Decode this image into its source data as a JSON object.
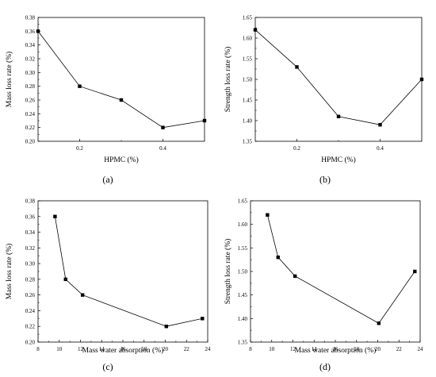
{
  "chart_data": [
    {
      "type": "line",
      "panel_label": "(a)",
      "xlabel": "HPMC (%)",
      "ylabel": "Mass loss rate (%)",
      "xlim": [
        0.1,
        0.5
      ],
      "ylim": [
        0.2,
        0.38
      ],
      "xticks": [
        0.2,
        0.4
      ],
      "xtick_labels": [
        "0.2",
        "0.4"
      ],
      "yticks": [
        0.2,
        0.22,
        0.24,
        0.26,
        0.28,
        0.3,
        0.32,
        0.34,
        0.36,
        0.38
      ],
      "ytick_labels": [
        "0.20",
        "0.22",
        "0.24",
        "0.26",
        "0.28",
        "0.30",
        "0.32",
        "0.34",
        "0.36",
        "0.38"
      ],
      "x": [
        0.1,
        0.2,
        0.3,
        0.4,
        0.5
      ],
      "y": [
        0.36,
        0.28,
        0.26,
        0.22,
        0.23
      ]
    },
    {
      "type": "line",
      "panel_label": "(b)",
      "xlabel": "HPMC (%)",
      "ylabel": "Strength loss rate (%)",
      "xlim": [
        0.1,
        0.5
      ],
      "ylim": [
        1.35,
        1.65
      ],
      "xticks": [
        0.2,
        0.4
      ],
      "xtick_labels": [
        "0.2",
        "0.4"
      ],
      "yticks": [
        1.35,
        1.4,
        1.45,
        1.5,
        1.55,
        1.6,
        1.65
      ],
      "ytick_labels": [
        "1.35",
        "1.40",
        "1.45",
        "1.50",
        "1.55",
        "1.60",
        "1.65"
      ],
      "x": [
        0.1,
        0.2,
        0.3,
        0.4,
        0.5
      ],
      "y": [
        1.62,
        1.53,
        1.41,
        1.39,
        1.5
      ]
    },
    {
      "type": "line",
      "panel_label": "(c)",
      "xlabel": "Mass water absorption (%)",
      "ylabel": "Mass loss rate (%)",
      "xlim": [
        8,
        24
      ],
      "ylim": [
        0.2,
        0.38
      ],
      "xticks": [
        8,
        10,
        12,
        14,
        16,
        18,
        20,
        22,
        24
      ],
      "xtick_labels": [
        "8",
        "10",
        "12",
        "14",
        "16",
        "18",
        "20",
        "22",
        "24"
      ],
      "yticks": [
        0.2,
        0.22,
        0.24,
        0.26,
        0.28,
        0.3,
        0.32,
        0.34,
        0.36,
        0.38
      ],
      "ytick_labels": [
        "0.20",
        "0.22",
        "0.24",
        "0.26",
        "0.28",
        "0.30",
        "0.32",
        "0.34",
        "0.36",
        "0.38"
      ],
      "x": [
        9.6,
        10.6,
        12.2,
        20.1,
        23.5
      ],
      "y": [
        0.36,
        0.28,
        0.26,
        0.22,
        0.23
      ]
    },
    {
      "type": "line",
      "panel_label": "(d)",
      "xlabel": "Mass water absorption (%)",
      "ylabel": "Strength loss rate (%)",
      "xlim": [
        8,
        24
      ],
      "ylim": [
        1.35,
        1.65
      ],
      "xticks": [
        8,
        10,
        12,
        14,
        16,
        18,
        20,
        22,
        24
      ],
      "xtick_labels": [
        "8",
        "10",
        "12",
        "14",
        "16",
        "18",
        "20",
        "22",
        "24"
      ],
      "yticks": [
        1.35,
        1.4,
        1.45,
        1.5,
        1.55,
        1.6,
        1.65
      ],
      "ytick_labels": [
        "1.35",
        "1.40",
        "1.45",
        "1.50",
        "1.55",
        "1.60",
        "1.65"
      ],
      "x": [
        9.6,
        10.6,
        12.2,
        20.1,
        23.5
      ],
      "y": [
        1.62,
        1.53,
        1.49,
        1.39,
        1.5
      ]
    }
  ]
}
